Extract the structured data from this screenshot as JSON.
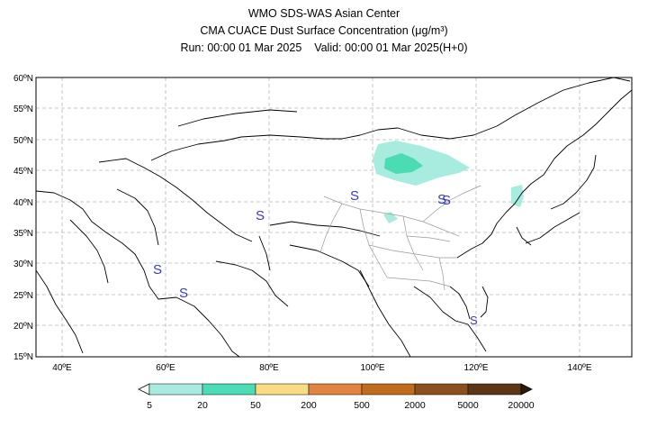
{
  "header": {
    "line1": "WMO SDS-WAS Asian Center",
    "line2": "CMA CUACE Dust Surface Concentration (μg/m³)",
    "run_label": "Run: 00:00 01 Mar 2025",
    "valid_label": "Valid: 00:00 01 Mar 2025(H+0)"
  },
  "axes": {
    "lat_labels": [
      "60ºN",
      "55ºN",
      "50ºN",
      "45ºN",
      "40ºN",
      "35ºN",
      "30ºN",
      "25ºN",
      "20ºN",
      "15ºN"
    ],
    "lon_labels": [
      "40ºE",
      "60ºE",
      "80ºE",
      "100ºE",
      "120ºE",
      "140ºE"
    ]
  },
  "markers": {
    "symbol": "S"
  },
  "legend": {
    "labels": [
      "5",
      "20",
      "50",
      "200",
      "500",
      "2000",
      "5000",
      "20000"
    ],
    "colors": [
      "#a8ece0",
      "#4cdcb4",
      "#f8dc84",
      "#e08440",
      "#c06c1c",
      "#8c5020",
      "#5c3416",
      "#2c1a0c"
    ]
  }
}
